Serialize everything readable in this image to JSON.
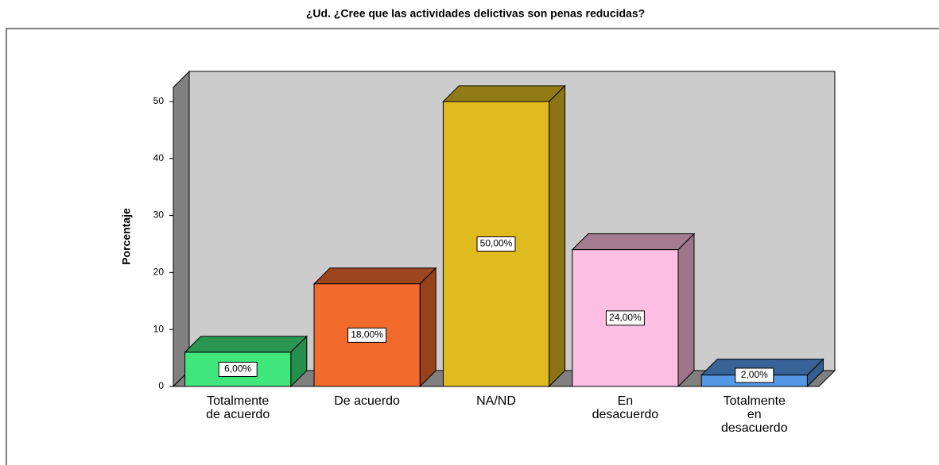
{
  "chart_data": {
    "type": "bar3d",
    "title": "¿Ud. ¿Cree que las actividades delictivas son penas reducidas?",
    "y_label": "Porcentaje",
    "categories": [
      [
        "Totalmente",
        "de acuerdo"
      ],
      [
        "De acuerdo"
      ],
      [
        "NA/ND"
      ],
      [
        "En",
        "desacuerdo"
      ],
      [
        "Totalmente",
        "en",
        "desacuerdo"
      ]
    ],
    "values": [
      6,
      18,
      50,
      24,
      2
    ],
    "value_labels": [
      "6,00%",
      "18,00%",
      "50,00%",
      "24,00%",
      "2,00%"
    ],
    "colors": [
      "#3fe67c",
      "#f26a2c",
      "#e0bb1f",
      "#fdbfe1",
      "#5599e6"
    ],
    "ylim": [
      0,
      52.5
    ],
    "yticks": [
      0,
      10,
      20,
      30,
      40,
      50
    ]
  }
}
